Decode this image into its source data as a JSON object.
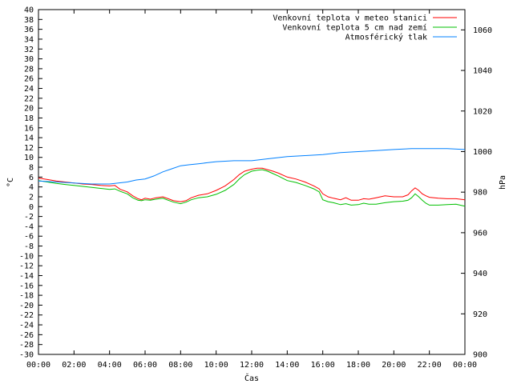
{
  "chart_data": {
    "type": "line",
    "xlabel": "Čas",
    "ylabel": "°C",
    "y2label": "hPa",
    "xlim": [
      0,
      24
    ],
    "ylim": [
      -30,
      40
    ],
    "y2lim": [
      900,
      1070
    ],
    "grid": false,
    "legend_position": "top-right",
    "x_ticks": [
      "00:00",
      "02:00",
      "04:00",
      "06:00",
      "08:00",
      "10:00",
      "12:00",
      "14:00",
      "16:00",
      "18:00",
      "20:00",
      "22:00",
      "00:00"
    ],
    "y_ticks": [
      40,
      38,
      36,
      34,
      32,
      30,
      28,
      26,
      24,
      22,
      20,
      18,
      16,
      14,
      12,
      10,
      8,
      6,
      4,
      2,
      0,
      -2,
      -4,
      -6,
      -8,
      -10,
      -12,
      -14,
      -16,
      -18,
      -20,
      -22,
      -24,
      -26,
      -28,
      -30
    ],
    "y2_ticks": [
      1060,
      1040,
      1020,
      1000,
      980,
      960,
      940,
      920,
      900
    ],
    "series": [
      {
        "name": "Venkovní teplota v meteo stanici",
        "color": "#ff0000",
        "axis": "left",
        "x": [
          0,
          0.5,
          1,
          1.5,
          2,
          2.5,
          3,
          3.5,
          4,
          4.3,
          4.6,
          5,
          5.3,
          5.6,
          5.8,
          6,
          6.3,
          6.6,
          7,
          7.3,
          7.6,
          8,
          8.3,
          8.6,
          9,
          9.5,
          10,
          10.5,
          11,
          11.3,
          11.6,
          12,
          12.3,
          12.6,
          12.9,
          13.2,
          13.5,
          14,
          14.5,
          15,
          15.5,
          15.8,
          16,
          16.3,
          16.6,
          17,
          17.3,
          17.6,
          18,
          18.3,
          18.6,
          19,
          19.5,
          20,
          20.5,
          20.8,
          21,
          21.2,
          21.4,
          21.6,
          21.8,
          22,
          22.5,
          23,
          23.5,
          24
        ],
        "y": [
          5.8,
          5.5,
          5.2,
          5.0,
          4.8,
          4.6,
          4.5,
          4.3,
          4.2,
          4.3,
          3.5,
          3.0,
          2.2,
          1.6,
          1.4,
          1.7,
          1.5,
          1.8,
          2.0,
          1.6,
          1.2,
          1.0,
          1.2,
          1.8,
          2.3,
          2.6,
          3.3,
          4.2,
          5.5,
          6.5,
          7.2,
          7.6,
          7.8,
          7.8,
          7.5,
          7.2,
          6.8,
          6.0,
          5.6,
          5.0,
          4.2,
          3.6,
          2.6,
          2.0,
          1.7,
          1.4,
          1.8,
          1.3,
          1.3,
          1.6,
          1.5,
          1.8,
          2.2,
          2.0,
          2.0,
          2.4,
          3.2,
          3.8,
          3.3,
          2.6,
          2.2,
          1.9,
          1.7,
          1.6,
          1.6,
          1.4
        ]
      },
      {
        "name": "Venkovní teplota 5 cm nad zemí",
        "color": "#00c000",
        "axis": "left",
        "x": [
          0,
          0.5,
          1,
          1.5,
          2,
          2.5,
          3,
          3.5,
          4,
          4.3,
          4.6,
          5,
          5.3,
          5.6,
          5.8,
          6,
          6.3,
          6.6,
          7,
          7.3,
          7.6,
          8,
          8.3,
          8.6,
          9,
          9.5,
          10,
          10.5,
          11,
          11.3,
          11.6,
          12,
          12.3,
          12.6,
          12.9,
          13.2,
          13.5,
          14,
          14.5,
          15,
          15.5,
          15.8,
          16,
          16.3,
          16.6,
          17,
          17.3,
          17.6,
          18,
          18.3,
          18.6,
          19,
          19.5,
          20,
          20.5,
          20.8,
          21,
          21.2,
          21.4,
          21.6,
          21.8,
          22,
          22.5,
          23,
          23.5,
          24
        ],
        "y": [
          5.3,
          5.0,
          4.7,
          4.5,
          4.3,
          4.1,
          3.9,
          3.7,
          3.5,
          3.6,
          3.1,
          2.6,
          1.8,
          1.3,
          1.2,
          1.4,
          1.3,
          1.5,
          1.7,
          1.3,
          0.9,
          0.6,
          0.9,
          1.4,
          1.8,
          2.0,
          2.5,
          3.3,
          4.5,
          5.6,
          6.5,
          7.2,
          7.4,
          7.5,
          7.2,
          6.7,
          6.2,
          5.3,
          4.9,
          4.3,
          3.6,
          3.0,
          1.4,
          1.0,
          0.8,
          0.4,
          0.6,
          0.3,
          0.4,
          0.7,
          0.5,
          0.5,
          0.8,
          1.0,
          1.1,
          1.3,
          1.8,
          2.6,
          2.0,
          1.3,
          0.7,
          0.3,
          0.3,
          0.4,
          0.5,
          0.1
        ]
      },
      {
        "name": "Atmosférický tlak",
        "color": "#0080ff",
        "axis": "right",
        "x": [
          0,
          1,
          2,
          3,
          4,
          4.5,
          5,
          5.5,
          6,
          6.5,
          7,
          7.5,
          8,
          8.5,
          9,
          9.5,
          10,
          11,
          12,
          13,
          14,
          15,
          16,
          17,
          18,
          19,
          20,
          21,
          22,
          23,
          24
        ],
        "y": [
          985.5,
          985.0,
          984.5,
          984.0,
          984.0,
          984.5,
          985.0,
          986.0,
          986.5,
          988.0,
          990.0,
          991.5,
          993.0,
          993.5,
          994.0,
          994.5,
          995.0,
          995.5,
          995.5,
          996.5,
          997.5,
          998.0,
          998.5,
          999.5,
          1000.0,
          1000.5,
          1001.0,
          1001.5,
          1001.5,
          1001.5,
          1001.0
        ]
      }
    ]
  }
}
